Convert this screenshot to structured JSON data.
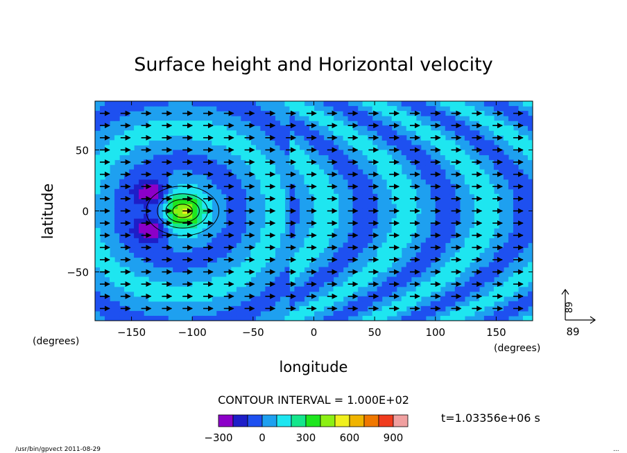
{
  "chart_data": {
    "type": "heatmap",
    "title": "Surface height and Horizontal velocity",
    "xlabel": "longitude",
    "ylabel": "latitude",
    "x_unit": "(degrees)",
    "y_unit": "(degrees)",
    "xlim": [
      -180,
      180
    ],
    "ylim": [
      -90,
      90
    ],
    "x_ticks": [
      -150,
      -100,
      -50,
      0,
      50,
      100,
      150
    ],
    "y_ticks": [
      50,
      0,
      -50
    ],
    "contour_interval_label": "CONTOUR INTERVAL = 1.000E+02",
    "time_label": "t=1.03356e+06 s",
    "reference_vector": {
      "x_label": "89",
      "y_label": "89"
    },
    "colorbar": {
      "levels": [
        -300,
        -200,
        -100,
        0,
        100,
        200,
        300,
        400,
        500,
        600,
        700,
        800,
        900,
        1000
      ],
      "tick_labels": [
        "−300",
        "0",
        "300",
        "600",
        "900"
      ],
      "tick_values": [
        -300,
        0,
        300,
        600,
        900
      ],
      "colors": [
        "#8c00c8",
        "#1e1ec8",
        "#1e50f0",
        "#1ea0f0",
        "#1ee6f0",
        "#14e68c",
        "#1ee61e",
        "#8cf014",
        "#f0f01e",
        "#f0b400",
        "#f07800",
        "#f03c1e",
        "#f0a0a0"
      ]
    },
    "field_features": [
      {
        "kind": "high",
        "lon": -108,
        "lat": 0,
        "value": 500
      },
      {
        "kind": "low",
        "lon": -133,
        "lat": 14,
        "value": -300
      },
      {
        "kind": "low",
        "lon": -133,
        "lat": -14,
        "value": -300
      }
    ],
    "vector_field": {
      "dominant_direction": "eastward",
      "u_max": 89,
      "v_max": 89
    },
    "grid": false,
    "legend": "none"
  },
  "footer": {
    "program": "/usr/bin/gpvect  2011-08-29",
    "corner_mark": "..."
  }
}
